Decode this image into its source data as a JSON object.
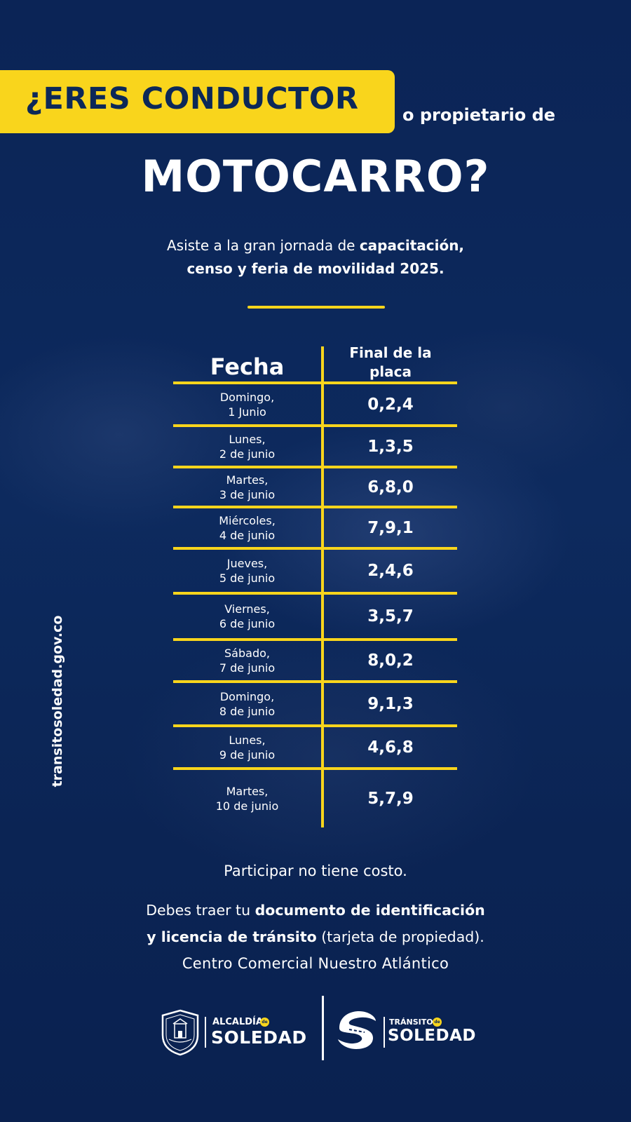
{
  "header": {
    "highlight": "¿ERES CONDUCTOR",
    "tail": "o propietario de",
    "title": "MOTOCARRO?"
  },
  "intro": {
    "part1": "Asiste a la gran jornada de ",
    "bold1": "capacitación,",
    "bold2": "censo y feria de movilidad 2025."
  },
  "table": {
    "header_date": "Fecha",
    "header_plate_line1": "Final de la",
    "header_plate_line2": "placa",
    "rows": [
      {
        "date": "Domingo,\n1 Junio",
        "plate": "0,2,4"
      },
      {
        "date": "Lunes,\n2 de junio",
        "plate": "1,3,5"
      },
      {
        "date": "Martes,\n3 de junio",
        "plate": "6,8,0"
      },
      {
        "date": "Miércoles,\n4 de junio",
        "plate": "7,9,1"
      },
      {
        "date": "Jueves,\n5 de junio",
        "plate": "2,4,6"
      },
      {
        "date": "Viernes,\n6 de junio",
        "plate": "3,5,7"
      },
      {
        "date": "Sábado,\n7 de junio",
        "plate": "8,0,2"
      },
      {
        "date": "Domingo,\n8 de junio",
        "plate": "9,1,3"
      },
      {
        "date": "Lunes,\n9 de junio",
        "plate": "4,6,8"
      },
      {
        "date": "Martes,\n10 de junio",
        "plate": "5,7,9"
      }
    ]
  },
  "side_url": "transitosoledad.gov.co",
  "notes": {
    "free": "Participar no tiene costo.",
    "docs_pre": "Debes traer tu ",
    "docs_bold1": "documento de identificación",
    "docs_bold2": "y licencia de tránsito",
    "docs_post": " (tarjeta de propiedad).",
    "location": "Centro Comercial Nuestro Atlántico"
  },
  "logos": {
    "alcaldia_small": "ALCALDÍA",
    "alcaldia_big": "SOLEDAD",
    "transito_small": "TRÁNSITO",
    "transito_big": "SOLEDAD",
    "de": "de"
  },
  "colors": {
    "background": "#0b2456",
    "accent_yellow": "#f9d51c",
    "headline_text": "#0c2858",
    "text": "#ffffff"
  }
}
